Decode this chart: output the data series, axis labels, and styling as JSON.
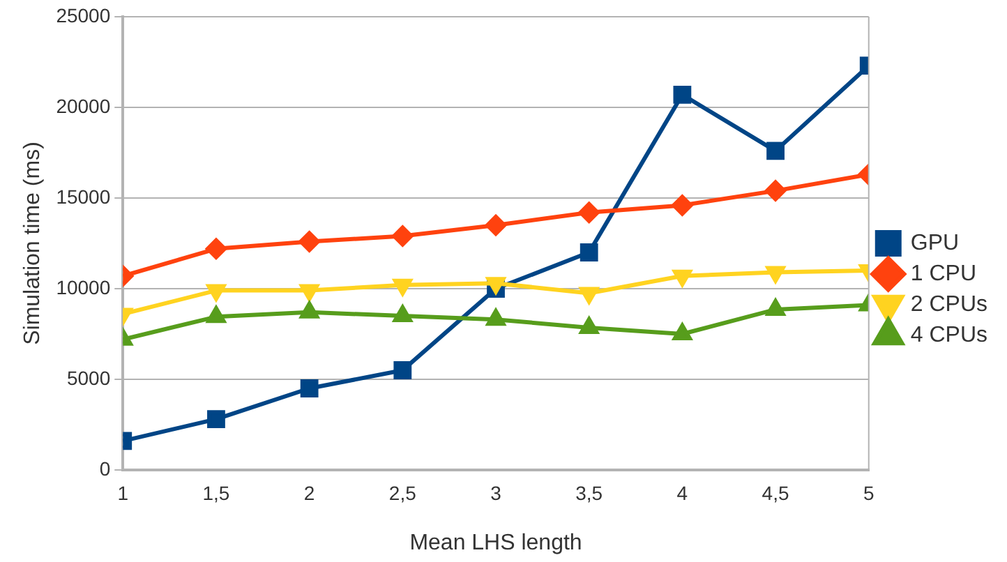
{
  "chart_data": {
    "type": "line",
    "xlabel": "Mean LHS length",
    "ylabel": "Simulation time (ms)",
    "x": [
      1,
      1.5,
      2,
      2.5,
      3,
      3.5,
      4,
      4.5,
      5
    ],
    "series": [
      {
        "name": "GPU",
        "color": "#004586",
        "marker": "square",
        "values": [
          1600,
          2800,
          4500,
          5500,
          10000,
          12000,
          20700,
          17600,
          22300
        ]
      },
      {
        "name": "1 CPU",
        "color": "#ff420e",
        "marker": "diamond",
        "values": [
          10700,
          12200,
          12600,
          12900,
          13500,
          14200,
          14600,
          15400,
          16300
        ]
      },
      {
        "name": "2 CPUs",
        "color": "#ffd320",
        "marker": "triangle_down",
        "values": [
          8600,
          9900,
          9900,
          10200,
          10300,
          9750,
          10700,
          10900,
          11000
        ]
      },
      {
        "name": "4 CPUs",
        "color": "#579d1c",
        "marker": "triangle",
        "values": [
          7200,
          8450,
          8700,
          8500,
          8300,
          7850,
          7500,
          8850,
          9100
        ]
      }
    ],
    "xlim": [
      1,
      5
    ],
    "xticks": [
      1,
      {
        "value": 1.5,
        "label": "1,5"
      },
      2,
      {
        "value": 2.5,
        "label": "2,5"
      },
      3,
      {
        "value": 3.5,
        "label": "3,5"
      },
      4,
      {
        "value": 4.5,
        "label": "4,5"
      },
      5
    ],
    "ylim": [
      0,
      25000
    ],
    "yticks": [
      0,
      5000,
      10000,
      15000,
      20000,
      25000
    ],
    "grid": "y",
    "legend": "right",
    "line_style": "solid"
  }
}
